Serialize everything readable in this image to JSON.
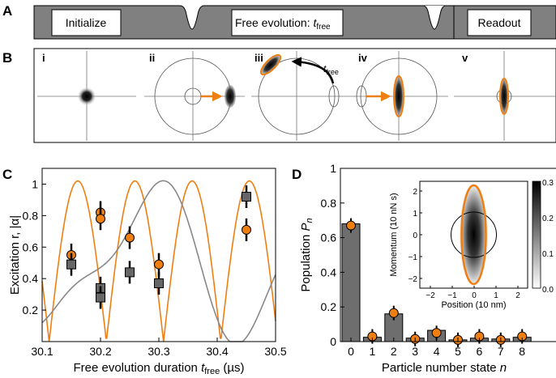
{
  "panels": {
    "A": "A",
    "B": "B",
    "C": "C",
    "D": "D"
  },
  "sequence": {
    "step1": "Initialize",
    "step2": "Free evolution: ",
    "step2_var": "t",
    "step2_sub": "free",
    "step3": "Readout"
  },
  "subpanels": [
    "i",
    "ii",
    "iii",
    "iv",
    "v"
  ],
  "tfree_label": {
    "var": "t",
    "sub": "free"
  },
  "colors": {
    "orange": "#f07f12",
    "gray": "#7a7a7a",
    "bar": "#6e6e6e",
    "line_gray": "#888888"
  },
  "chart_data": [
    {
      "type": "scatter",
      "xlabel_pre": "Free evolution duration ",
      "xlabel_var": "t",
      "xlabel_sub": "free",
      "xlabel_post": " (µs)",
      "ylabel": "Excitation r, |α|",
      "xlim": [
        30.1,
        30.5
      ],
      "ylim": [
        0,
        1.1
      ],
      "xticks": [
        "30.1",
        "30.2",
        "30.3",
        "30.4",
        "30.5"
      ],
      "yticks": [
        "0.2",
        "0.4",
        "0.6",
        "0.8",
        "1"
      ],
      "series": [
        {
          "marker": "circle",
          "color": "#f07f12",
          "points": [
            [
              30.15,
              0.55
            ],
            [
              30.2,
              0.82
            ],
            [
              30.2,
              0.78
            ],
            [
              30.25,
              0.66
            ],
            [
              30.3,
              0.49
            ],
            [
              30.45,
              0.71
            ]
          ]
        },
        {
          "marker": "square",
          "color": "#666666",
          "points": [
            [
              30.15,
              0.49
            ],
            [
              30.2,
              0.34
            ],
            [
              30.2,
              0.28
            ],
            [
              30.25,
              0.44
            ],
            [
              30.3,
              0.37
            ],
            [
              30.45,
              0.92
            ]
          ]
        }
      ]
    },
    {
      "type": "bar",
      "xlabel": "Particle number state n",
      "ylabel": "Population P_n",
      "ylim": [
        0,
        1
      ],
      "categories": [
        "0",
        "1",
        "2",
        "3",
        "4",
        "5",
        "6",
        "7",
        "8"
      ],
      "yticks": [
        "0",
        "0.2",
        "0.4",
        "0.6",
        "0.8",
        "1"
      ],
      "values": [
        0.68,
        0.025,
        0.16,
        0.02,
        0.065,
        0.01,
        0.02,
        0.015,
        0.025
      ],
      "points": [
        0.67,
        0.03,
        0.165,
        0.015,
        0.05,
        0.01,
        0.03,
        0.01,
        0.03
      ]
    },
    {
      "type": "heatmap",
      "xlabel": "Position (10 nm)",
      "ylabel": "Momentum (10 nN s)",
      "xticks": [
        "−2",
        "−1",
        "0",
        "1",
        "2"
      ],
      "yticks": [
        "2",
        "1",
        "0",
        "−1",
        "−2"
      ],
      "colorbar_ticks": [
        "0.3",
        "0.2",
        "0.1",
        "0.0"
      ]
    }
  ]
}
